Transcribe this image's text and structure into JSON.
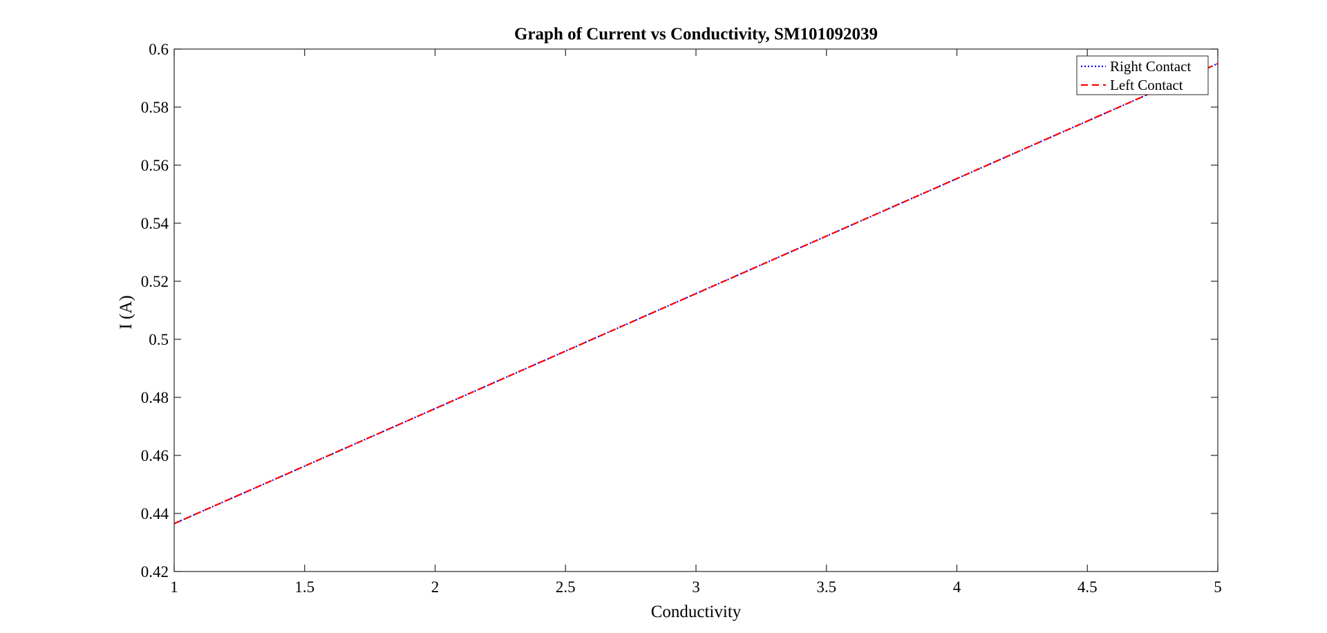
{
  "chart_data": {
    "type": "line",
    "title": "Graph of Current vs Conductivity, SM101092039",
    "xlabel": "Conductivity",
    "ylabel": "I (A)",
    "xlim": [
      1,
      5
    ],
    "ylim": [
      0.42,
      0.6
    ],
    "xticks": [
      1,
      1.5,
      2,
      2.5,
      3,
      3.5,
      4,
      4.5,
      5
    ],
    "xtick_labels": [
      "1",
      "1.5",
      "2",
      "2.5",
      "3",
      "3.5",
      "4",
      "4.5",
      "5"
    ],
    "yticks": [
      0.42,
      0.44,
      0.46,
      0.48,
      0.5,
      0.52,
      0.54,
      0.56,
      0.58,
      0.6
    ],
    "ytick_labels": [
      "0.42",
      "0.44",
      "0.46",
      "0.48",
      "0.5",
      "0.52",
      "0.54",
      "0.56",
      "0.58",
      "0.6"
    ],
    "grid": false,
    "legend_position": "top-right",
    "series": [
      {
        "name": "Right Contact",
        "color": "#0000ff",
        "style": "dotted",
        "x": [
          1,
          5
        ],
        "y": [
          0.4365,
          0.595
        ]
      },
      {
        "name": "Left Contact",
        "color": "#ff0000",
        "style": "dashed",
        "x": [
          1,
          5
        ],
        "y": [
          0.4365,
          0.595
        ]
      }
    ]
  }
}
